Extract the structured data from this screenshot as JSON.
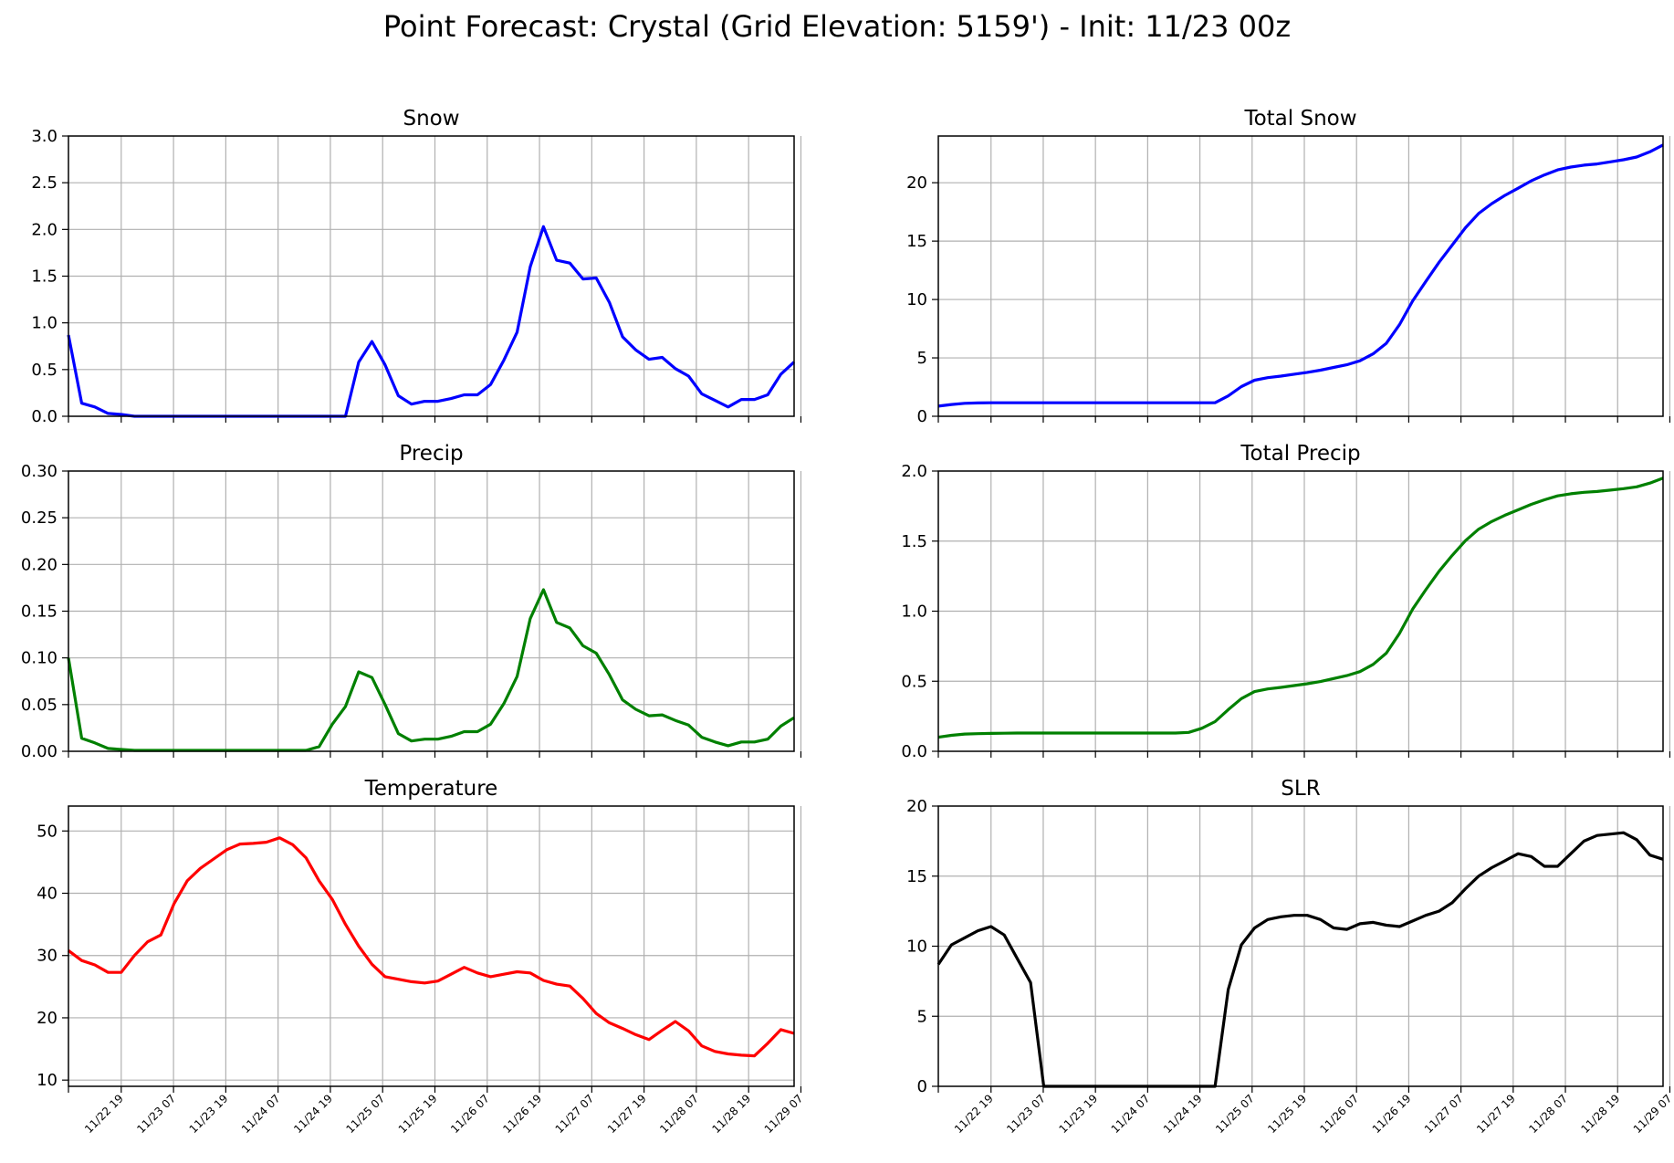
{
  "figure": {
    "title": "Point Forecast: Crystal (Grid Elevation: 5159') - Init: 11/23 00z"
  },
  "chart_data": [
    {
      "type": "line",
      "title": "Snow",
      "color": "#0000ff",
      "x_tick_labels": [
        "11/22 19",
        "11/23 07",
        "11/23 19",
        "11/24 07",
        "11/24 19",
        "11/25 07",
        "11/25 19",
        "11/26 07",
        "11/26 19",
        "11/27 07",
        "11/27 19",
        "11/28 07",
        "11/28 19",
        "11/29 07"
      ],
      "x_range": [
        0,
        55
      ],
      "ylim": [
        0,
        3.0
      ],
      "y_ticks": [
        "0.0",
        "0.5",
        "1.0",
        "1.5",
        "2.0",
        "2.5",
        "3.0"
      ],
      "grid": true,
      "show_x_tick_labels": false,
      "values": [
        0.87,
        0.14,
        0.1,
        0.03,
        0.02,
        0.0,
        0.0,
        0.0,
        0.0,
        0.0,
        0.0,
        0.0,
        0.0,
        0.0,
        0.0,
        0.0,
        0.0,
        0.0,
        0.0,
        0.0,
        0.0,
        0.0,
        0.58,
        0.8,
        0.55,
        0.22,
        0.13,
        0.16,
        0.16,
        0.19,
        0.23,
        0.23,
        0.34,
        0.6,
        0.9,
        1.6,
        2.03,
        1.67,
        1.64,
        1.47,
        1.48,
        1.22,
        0.85,
        0.71,
        0.61,
        0.63,
        0.51,
        0.43,
        0.24,
        0.17,
        0.1,
        0.18,
        0.18,
        0.23,
        0.45,
        0.58
      ]
    },
    {
      "type": "line",
      "title": "Total Snow",
      "color": "#0000ff",
      "x_tick_labels": [
        "11/22 19",
        "11/23 07",
        "11/23 19",
        "11/24 07",
        "11/24 19",
        "11/25 07",
        "11/25 19",
        "11/26 07",
        "11/26 19",
        "11/27 07",
        "11/27 19",
        "11/28 07",
        "11/28 19",
        "11/29 07"
      ],
      "x_range": [
        0,
        55
      ],
      "ylim": [
        0,
        24
      ],
      "y_ticks": [
        "0",
        "5",
        "10",
        "15",
        "20"
      ],
      "grid": true,
      "show_x_tick_labels": false,
      "values": [
        0.87,
        1.01,
        1.11,
        1.14,
        1.16,
        1.16,
        1.16,
        1.16,
        1.16,
        1.16,
        1.16,
        1.16,
        1.16,
        1.16,
        1.16,
        1.16,
        1.16,
        1.16,
        1.16,
        1.16,
        1.16,
        1.16,
        1.74,
        2.54,
        3.09,
        3.31,
        3.44,
        3.6,
        3.76,
        3.95,
        4.18,
        4.41,
        4.75,
        5.35,
        6.25,
        7.85,
        9.88,
        11.55,
        13.19,
        14.66,
        16.14,
        17.36,
        18.21,
        18.92,
        19.53,
        20.16,
        20.67,
        21.1,
        21.34,
        21.51,
        21.61,
        21.79,
        21.97,
        22.2,
        22.65,
        23.23
      ]
    },
    {
      "type": "line",
      "title": "Precip",
      "color": "#008000",
      "x_tick_labels": [
        "11/22 19",
        "11/23 07",
        "11/23 19",
        "11/24 07",
        "11/24 19",
        "11/25 07",
        "11/25 19",
        "11/26 07",
        "11/26 19",
        "11/27 07",
        "11/27 19",
        "11/28 07",
        "11/28 19",
        "11/29 07"
      ],
      "x_range": [
        0,
        55
      ],
      "ylim": [
        0,
        0.3
      ],
      "y_ticks": [
        "0.00",
        "0.05",
        "0.10",
        "0.15",
        "0.20",
        "0.25",
        "0.30"
      ],
      "grid": true,
      "show_x_tick_labels": false,
      "values": [
        0.1,
        0.014,
        0.009,
        0.003,
        0.002,
        0.001,
        0.001,
        0.001,
        0.001,
        0.001,
        0.001,
        0.001,
        0.001,
        0.001,
        0.001,
        0.001,
        0.001,
        0.001,
        0.001,
        0.005,
        0.029,
        0.048,
        0.085,
        0.079,
        0.05,
        0.019,
        0.011,
        0.013,
        0.013,
        0.016,
        0.021,
        0.021,
        0.029,
        0.051,
        0.08,
        0.142,
        0.173,
        0.138,
        0.132,
        0.113,
        0.105,
        0.082,
        0.055,
        0.045,
        0.038,
        0.039,
        0.033,
        0.028,
        0.015,
        0.01,
        0.006,
        0.01,
        0.01,
        0.013,
        0.027,
        0.036
      ]
    },
    {
      "type": "line",
      "title": "Total Precip",
      "color": "#008000",
      "x_tick_labels": [
        "11/22 19",
        "11/23 07",
        "11/23 19",
        "11/24 07",
        "11/24 19",
        "11/25 07",
        "11/25 19",
        "11/26 07",
        "11/26 19",
        "11/27 07",
        "11/27 19",
        "11/28 07",
        "11/28 19",
        "11/29 07"
      ],
      "x_range": [
        0,
        55
      ],
      "ylim": [
        0,
        2.0
      ],
      "y_ticks": [
        "0.0",
        "0.5",
        "1.0",
        "1.5",
        "2.0"
      ],
      "grid": true,
      "show_x_tick_labels": false,
      "values": [
        0.1,
        0.114,
        0.123,
        0.126,
        0.128,
        0.129,
        0.13,
        0.13,
        0.13,
        0.13,
        0.13,
        0.13,
        0.13,
        0.13,
        0.13,
        0.13,
        0.13,
        0.13,
        0.13,
        0.135,
        0.164,
        0.212,
        0.297,
        0.376,
        0.426,
        0.445,
        0.456,
        0.469,
        0.482,
        0.498,
        0.519,
        0.54,
        0.569,
        0.62,
        0.7,
        0.842,
        1.015,
        1.153,
        1.285,
        1.398,
        1.503,
        1.585,
        1.64,
        1.685,
        1.723,
        1.762,
        1.795,
        1.823,
        1.838,
        1.848,
        1.854,
        1.864,
        1.874,
        1.887,
        1.914,
        1.95
      ]
    },
    {
      "type": "line",
      "title": "Temperature",
      "color": "#ff0000",
      "x_tick_labels": [
        "11/22 19",
        "11/23 07",
        "11/23 19",
        "11/24 07",
        "11/24 19",
        "11/25 07",
        "11/25 19",
        "11/26 07",
        "11/26 19",
        "11/27 07",
        "11/27 19",
        "11/28 07",
        "11/28 19",
        "11/29 07"
      ],
      "x_range": [
        0,
        55
      ],
      "ylim": [
        9,
        54
      ],
      "y_ticks": [
        "10",
        "20",
        "30",
        "40",
        "50"
      ],
      "grid": true,
      "show_x_tick_labels": true,
      "values": [
        30.8,
        29.2,
        28.5,
        27.3,
        27.3,
        30.0,
        32.2,
        33.3,
        38.3,
        42.0,
        44.0,
        45.5,
        47.0,
        47.9,
        48.0,
        48.2,
        48.9,
        47.8,
        45.7,
        42.0,
        39.0,
        35.0,
        31.5,
        28.6,
        26.6,
        26.2,
        25.8,
        25.6,
        25.9,
        27.0,
        28.1,
        27.2,
        26.6,
        27.0,
        27.4,
        27.2,
        26.0,
        25.4,
        25.1,
        23.1,
        20.7,
        19.2,
        18.3,
        17.3,
        16.5,
        18.0,
        19.4,
        17.9,
        15.5,
        14.6,
        14.2,
        14.0,
        13.9,
        15.9,
        18.1,
        17.5
      ]
    },
    {
      "type": "line",
      "title": "SLR",
      "color": "#000000",
      "x_tick_labels": [
        "11/22 19",
        "11/23 07",
        "11/23 19",
        "11/24 07",
        "11/24 19",
        "11/25 07",
        "11/25 19",
        "11/26 07",
        "11/26 19",
        "11/27 07",
        "11/27 19",
        "11/28 07",
        "11/28 19",
        "11/29 07"
      ],
      "x_range": [
        0,
        55
      ],
      "ylim": [
        0,
        20
      ],
      "y_ticks": [
        "0",
        "5",
        "10",
        "15",
        "20"
      ],
      "grid": true,
      "show_x_tick_labels": true,
      "values": [
        8.7,
        10.1,
        10.6,
        11.1,
        11.4,
        10.8,
        9.1,
        7.4,
        0,
        0,
        0,
        0,
        0,
        0,
        0,
        0,
        0,
        0,
        0,
        0,
        0,
        0,
        6.9,
        10.1,
        11.3,
        11.9,
        12.1,
        12.2,
        12.2,
        11.9,
        11.3,
        11.2,
        11.6,
        11.7,
        11.5,
        11.4,
        11.8,
        12.2,
        12.5,
        13.1,
        14.1,
        15.0,
        15.6,
        16.1,
        16.6,
        16.4,
        15.7,
        15.7,
        16.6,
        17.5,
        17.9,
        18.0,
        18.1,
        17.6,
        16.5,
        16.2
      ]
    }
  ]
}
